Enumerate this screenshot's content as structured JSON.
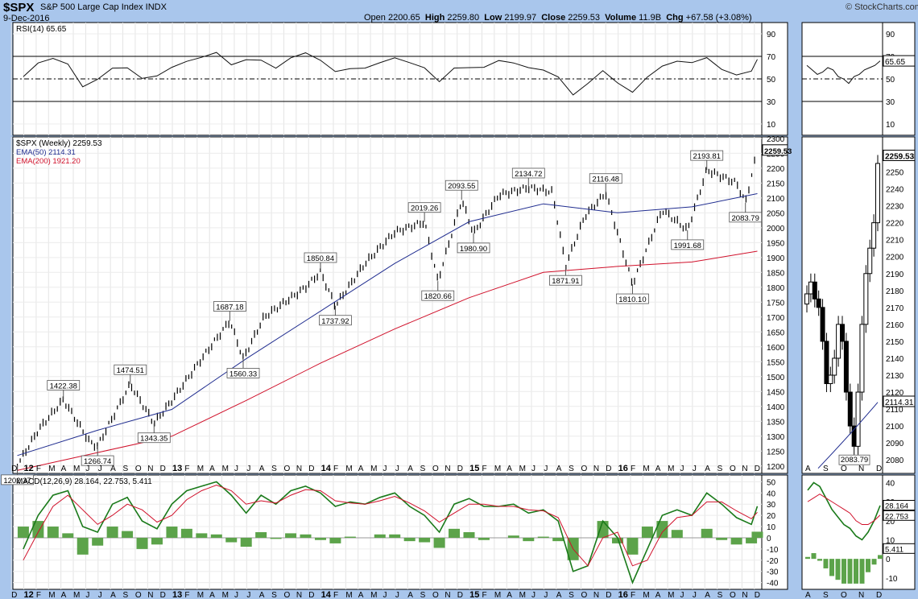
{
  "header": {
    "symbol": "$SPX",
    "description": "S&P 500 Large Cap Index  INDX",
    "date": "9-Dec-2016",
    "open_label": "Open",
    "open": "2200.65",
    "high_label": "High",
    "high": "2259.80",
    "low_label": "Low",
    "low": "2199.97",
    "close_label": "Close",
    "close": "2259.53",
    "volume_label": "Volume",
    "volume": "11.9B",
    "chg_label": "Chg",
    "chg": "+67.58 (+3.08%)",
    "watermark": "© StockCharts.com"
  },
  "colors": {
    "background": "#a9c6ec",
    "panel": "#ffffff",
    "ema50": "#1f2c8f",
    "ema200": "#d0102a",
    "macd": "#1a7a1a",
    "signal": "#d0102a",
    "hist": "#5ca34a",
    "price": "#000000"
  },
  "chart_data": [
    {
      "type": "line",
      "panel": "rsi",
      "legend": "RSI(14) 65.65",
      "ticks": [
        10,
        30,
        50,
        70,
        90
      ],
      "ylim": [
        0,
        100
      ],
      "levels": [
        30,
        50,
        70
      ],
      "x": [
        2012.0,
        2012.1,
        2012.2,
        2012.3,
        2012.4,
        2012.5,
        2012.6,
        2012.7,
        2012.8,
        2012.9,
        2013.0,
        2013.1,
        2013.2,
        2013.3,
        2013.4,
        2013.5,
        2013.6,
        2013.7,
        2013.8,
        2013.9,
        2014.0,
        2014.1,
        2014.2,
        2014.3,
        2014.4,
        2014.5,
        2014.6,
        2014.7,
        2014.8,
        2014.9,
        2015.0,
        2015.1,
        2015.2,
        2015.3,
        2015.4,
        2015.5,
        2015.6,
        2015.7,
        2015.8,
        2015.9,
        2016.0,
        2016.1,
        2016.2,
        2016.3,
        2016.4,
        2016.5,
        2016.6,
        2016.7,
        2016.8,
        2016.9,
        2016.94
      ],
      "values": [
        52,
        62,
        66,
        63,
        45,
        52,
        60,
        58,
        48,
        52,
        62,
        68,
        70,
        72,
        60,
        66,
        68,
        62,
        70,
        72,
        64,
        55,
        60,
        62,
        66,
        68,
        62,
        58,
        48,
        62,
        62,
        60,
        64,
        62,
        60,
        60,
        54,
        36,
        44,
        55,
        46,
        40,
        54,
        62,
        64,
        62,
        68,
        60,
        56,
        58,
        66
      ]
    },
    {
      "type": "bar",
      "panel": "price",
      "legend": [
        "$SPX (Weekly) 2259.53",
        "EMA(50) 2114.31",
        "EMA(200) 1921.20"
      ],
      "ticks": [
        1200,
        1250,
        1300,
        1350,
        1400,
        1450,
        1500,
        1550,
        1600,
        1650,
        1700,
        1750,
        1800,
        1850,
        1900,
        1950,
        2000,
        2050,
        2100,
        2150,
        2200,
        2250,
        2300
      ],
      "ylim": [
        1175,
        2305
      ],
      "last_label": "2259.53",
      "x_labels": [
        "D",
        "12",
        "F",
        "M",
        "A",
        "M",
        "J",
        "J",
        "A",
        "S",
        "O",
        "N",
        "D",
        "13",
        "F",
        "M",
        "A",
        "M",
        "J",
        "J",
        "A",
        "S",
        "O",
        "N",
        "D",
        "14",
        "F",
        "M",
        "A",
        "M",
        "J",
        "J",
        "A",
        "S",
        "O",
        "N",
        "D",
        "15",
        "F",
        "M",
        "A",
        "M",
        "J",
        "J",
        "A",
        "S",
        "O",
        "N",
        "D",
        "16",
        "F",
        "M",
        "A",
        "M",
        "J",
        "J",
        "A",
        "S",
        "O",
        "N",
        "D"
      ],
      "anchors": [
        [
          2011.96,
          1202.37
        ],
        [
          2012.1,
          1320
        ],
        [
          2012.27,
          1422.38
        ],
        [
          2012.45,
          1278
        ],
        [
          2012.5,
          1266.74
        ],
        [
          2012.72,
          1474.51
        ],
        [
          2012.88,
          1343.35
        ],
        [
          2013.0,
          1420
        ],
        [
          2013.2,
          1560
        ],
        [
          2013.39,
          1687.18
        ],
        [
          2013.48,
          1560.33
        ],
        [
          2013.62,
          1700
        ],
        [
          2013.9,
          1800
        ],
        [
          2014.0,
          1850.84
        ],
        [
          2014.1,
          1737.92
        ],
        [
          2014.3,
          1880
        ],
        [
          2014.5,
          1985
        ],
        [
          2014.7,
          2019.26
        ],
        [
          2014.79,
          1820.66
        ],
        [
          2014.95,
          2093.55
        ],
        [
          2015.03,
          1980.9
        ],
        [
          2015.2,
          2110
        ],
        [
          2015.4,
          2134.72
        ],
        [
          2015.56,
          2120
        ],
        [
          2015.65,
          1871.91
        ],
        [
          2015.78,
          2040
        ],
        [
          2015.92,
          2116.48
        ],
        [
          2016.1,
          1810.1
        ],
        [
          2016.3,
          2060
        ],
        [
          2016.47,
          1991.68
        ],
        [
          2016.6,
          2193.81
        ],
        [
          2016.8,
          2150
        ],
        [
          2016.86,
          2083.79
        ],
        [
          2016.94,
          2259.53
        ]
      ],
      "annotations": [
        [
          2011.96,
          "1202.37",
          "low"
        ],
        [
          2012.27,
          "1422.38",
          "high"
        ],
        [
          2012.5,
          "1266.74",
          "low"
        ],
        [
          2012.72,
          "1474.51",
          "high"
        ],
        [
          2012.88,
          "1343.35",
          "low"
        ],
        [
          2013.39,
          "1687.18",
          "high"
        ],
        [
          2013.48,
          "1560.33",
          "low"
        ],
        [
          2014.0,
          "1850.84",
          "high"
        ],
        [
          2014.1,
          "1737.92",
          "low"
        ],
        [
          2014.7,
          "2019.26",
          "high"
        ],
        [
          2014.79,
          "1820.66",
          "low"
        ],
        [
          2014.95,
          "2093.55",
          "high"
        ],
        [
          2015.03,
          "1980.90",
          "low"
        ],
        [
          2015.4,
          "2134.72",
          "high"
        ],
        [
          2015.65,
          "1871.91",
          "low"
        ],
        [
          2015.92,
          "2116.48",
          "high"
        ],
        [
          2016.1,
          "1810.10",
          "low"
        ],
        [
          2016.47,
          "1991.68",
          "low"
        ],
        [
          2016.6,
          "2193.81",
          "high"
        ],
        [
          2016.86,
          "2083.79",
          "low"
        ]
      ],
      "ema50": [
        [
          2011.96,
          1235
        ],
        [
          2012.5,
          1320
        ],
        [
          2013.0,
          1390
        ],
        [
          2013.5,
          1560
        ],
        [
          2014.0,
          1720
        ],
        [
          2014.5,
          1880
        ],
        [
          2015.0,
          2020
        ],
        [
          2015.5,
          2080
        ],
        [
          2016.0,
          2050
        ],
        [
          2016.5,
          2070
        ],
        [
          2016.94,
          2114.31
        ]
      ],
      "ema200": [
        [
          2011.96,
          1185
        ],
        [
          2012.5,
          1245
        ],
        [
          2013.0,
          1300
        ],
        [
          2013.5,
          1420
        ],
        [
          2014.0,
          1545
        ],
        [
          2014.5,
          1660
        ],
        [
          2015.0,
          1765
        ],
        [
          2015.5,
          1850
        ],
        [
          2016.0,
          1870
        ],
        [
          2016.5,
          1885
        ],
        [
          2016.94,
          1921.2
        ]
      ]
    },
    {
      "type": "bar",
      "panel": "macd",
      "legend": "MACD(12,26,9) 28.164, 22.753, 5.411",
      "ticks": [
        -40,
        -30,
        -20,
        -10,
        0,
        10,
        20,
        30,
        40,
        50
      ],
      "ylim": [
        -46,
        56
      ],
      "x": [
        2012.0,
        2012.1,
        2012.2,
        2012.3,
        2012.4,
        2012.5,
        2012.6,
        2012.7,
        2012.8,
        2012.9,
        2013.0,
        2013.1,
        2013.2,
        2013.3,
        2013.4,
        2013.5,
        2013.6,
        2013.7,
        2013.8,
        2013.9,
        2014.0,
        2014.1,
        2014.2,
        2014.3,
        2014.4,
        2014.5,
        2014.6,
        2014.7,
        2014.8,
        2014.9,
        2015.0,
        2015.1,
        2015.2,
        2015.3,
        2015.4,
        2015.5,
        2015.6,
        2015.7,
        2015.8,
        2015.9,
        2016.0,
        2016.1,
        2016.2,
        2016.3,
        2016.4,
        2016.5,
        2016.6,
        2016.7,
        2016.8,
        2016.9,
        2016.94
      ],
      "macd": [
        -10,
        20,
        38,
        42,
        10,
        5,
        30,
        36,
        15,
        8,
        30,
        42,
        46,
        50,
        38,
        22,
        38,
        30,
        42,
        46,
        40,
        28,
        32,
        30,
        36,
        40,
        28,
        20,
        5,
        30,
        35,
        28,
        28,
        30,
        22,
        25,
        15,
        -30,
        -25,
        15,
        0,
        -40,
        -10,
        20,
        25,
        20,
        40,
        30,
        18,
        12,
        28.164
      ],
      "signal": [
        -20,
        5,
        28,
        38,
        25,
        12,
        20,
        30,
        25,
        14,
        20,
        34,
        42,
        47,
        42,
        30,
        33,
        31,
        38,
        43,
        42,
        33,
        31,
        30,
        33,
        37,
        31,
        24,
        14,
        22,
        30,
        30,
        28,
        28,
        25,
        24,
        18,
        -10,
        -25,
        0,
        5,
        -25,
        -20,
        5,
        18,
        20,
        32,
        32,
        24,
        17,
        22.753
      ]
    }
  ],
  "right_panel": {
    "price_ticks": [
      2080,
      2090,
      2100,
      2110,
      2120,
      2130,
      2140,
      2150,
      2160,
      2170,
      2180,
      2190,
      2200,
      2210,
      2220,
      2230,
      2240,
      2250
    ],
    "price_labels": {
      "last": "2259.53",
      "ema": "2114.31",
      "low": "2083.79"
    },
    "rsi_ticks": [
      10,
      30,
      50,
      70,
      90
    ],
    "rsi_label": "65.65",
    "macd_ticks": [
      -10,
      0,
      10,
      20,
      30,
      40
    ],
    "macd_labels": [
      "28.164",
      "22.753",
      "5.411"
    ],
    "x_labels": [
      "A",
      "S",
      "O",
      "N",
      "D"
    ]
  }
}
